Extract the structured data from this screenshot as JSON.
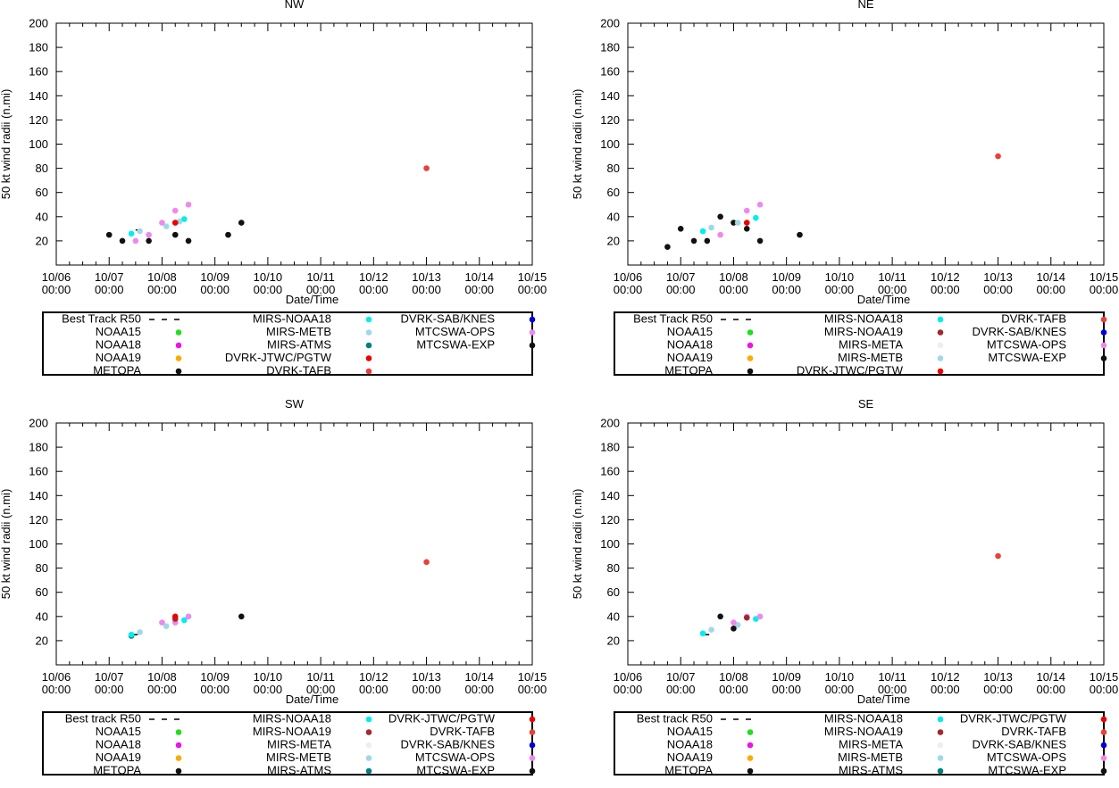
{
  "chart_data": [
    {
      "type": "scatter",
      "title": "NW",
      "xlabel": "Date/Time",
      "ylabel": "50 kt wind radii (n.mi)",
      "xlim": [
        0,
        9
      ],
      "ylim": [
        0,
        200
      ],
      "x_ticks": [
        "10/06 00:00",
        "10/07 00:00",
        "10/08 00:00",
        "10/09 00:00",
        "10/10 00:00",
        "10/11 00:00",
        "10/12 00:00",
        "10/13 00:00",
        "10/14 00:00",
        "10/15 00:00"
      ],
      "y_ticks": [
        20,
        40,
        60,
        80,
        100,
        120,
        140,
        160,
        180,
        200
      ],
      "legend": [
        {
          "name": "Best Track R50",
          "color": "#000000",
          "kind": "line"
        },
        {
          "name": "NOAA15",
          "color": "#22dd22",
          "kind": "point"
        },
        {
          "name": "NOAA18",
          "color": "#ee11ee",
          "kind": "point"
        },
        {
          "name": "NOAA19",
          "color": "#ffaa00",
          "kind": "point"
        },
        {
          "name": "METOPA",
          "color": "#111111",
          "kind": "point"
        },
        {
          "name": "MIRS-NOAA18",
          "color": "#00eeee",
          "kind": "point"
        },
        {
          "name": "MIRS-METB",
          "color": "#a0d8e8",
          "kind": "point"
        },
        {
          "name": "MIRS-ATMS",
          "color": "#008080",
          "kind": "point"
        },
        {
          "name": "DVRK-JTWC/PGTW",
          "color": "#ee0000",
          "kind": "point"
        },
        {
          "name": "DVRK-TAFB",
          "color": "#e8403a",
          "kind": "point"
        },
        {
          "name": "DVRK-SAB/KNES",
          "color": "#0000dd",
          "kind": "point"
        },
        {
          "name": "MTCSWA-OPS",
          "color": "#ee88ee",
          "kind": "point"
        },
        {
          "name": "MTCSWA-EXP",
          "color": "#111111",
          "kind": "point"
        }
      ],
      "best_track": [
        {
          "x": 1.5,
          "y": 29
        },
        {
          "x": 1.58,
          "y": 29
        }
      ],
      "series": [
        {
          "name": "MTCSWA-EXP",
          "color": "#111111",
          "points": [
            {
              "x": 1.0,
              "y": 25
            },
            {
              "x": 1.25,
              "y": 20
            },
            {
              "x": 1.75,
              "y": 20
            },
            {
              "x": 2.25,
              "y": 25
            },
            {
              "x": 2.5,
              "y": 20
            },
            {
              "x": 3.25,
              "y": 25
            },
            {
              "x": 3.5,
              "y": 35
            }
          ]
        },
        {
          "name": "MTCSWA-OPS",
          "color": "#ee88ee",
          "points": [
            {
              "x": 1.5,
              "y": 20
            },
            {
              "x": 1.75,
              "y": 25
            },
            {
              "x": 2.0,
              "y": 35
            },
            {
              "x": 2.25,
              "y": 45
            },
            {
              "x": 2.5,
              "y": 50
            }
          ]
        },
        {
          "name": "MIRS-METB",
          "color": "#a0d8e8",
          "points": [
            {
              "x": 1.58,
              "y": 28
            },
            {
              "x": 2.08,
              "y": 32
            },
            {
              "x": 2.33,
              "y": 36
            }
          ]
        },
        {
          "name": "MIRS-NOAA18",
          "color": "#00eeee",
          "points": [
            {
              "x": 1.42,
              "y": 26
            },
            {
              "x": 2.42,
              "y": 38
            }
          ]
        },
        {
          "name": "DVRK-JTWC/PGTW",
          "color": "#ee0000",
          "points": [
            {
              "x": 2.25,
              "y": 35
            }
          ]
        },
        {
          "name": "DVRK-TAFB",
          "color": "#e8403a",
          "points": [
            {
              "x": 7.0,
              "y": 80
            }
          ]
        }
      ]
    },
    {
      "type": "scatter",
      "title": "NE",
      "xlabel": "Date/Time",
      "ylabel": "50 kt wind radii (n.mi)",
      "xlim": [
        0,
        9
      ],
      "ylim": [
        0,
        200
      ],
      "x_ticks": [
        "10/06 00:00",
        "10/07 00:00",
        "10/08 00:00",
        "10/09 00:00",
        "10/10 00:00",
        "10/11 00:00",
        "10/12 00:00",
        "10/13 00:00",
        "10/14 00:00",
        "10/15 00:00"
      ],
      "y_ticks": [
        20,
        40,
        60,
        80,
        100,
        120,
        140,
        160,
        180,
        200
      ],
      "legend": [
        {
          "name": "Best Track R50",
          "color": "#000000",
          "kind": "line"
        },
        {
          "name": "NOAA15",
          "color": "#22dd22",
          "kind": "point"
        },
        {
          "name": "NOAA18",
          "color": "#ee11ee",
          "kind": "point"
        },
        {
          "name": "NOAA19",
          "color": "#ffaa00",
          "kind": "point"
        },
        {
          "name": "METOPA",
          "color": "#111111",
          "kind": "point"
        },
        {
          "name": "MIRS-NOAA18",
          "color": "#00eeee",
          "kind": "point"
        },
        {
          "name": "MIRS-NOAA19",
          "color": "#a02a2a",
          "kind": "point"
        },
        {
          "name": "MIRS-META",
          "color": "#eeeeee",
          "kind": "point"
        },
        {
          "name": "MIRS-METB",
          "color": "#a0d8e8",
          "kind": "point"
        },
        {
          "name": "DVRK-JTWC/PGTW",
          "color": "#ee0000",
          "kind": "point"
        },
        {
          "name": "DVRK-TAFB",
          "color": "#e8403a",
          "kind": "point"
        },
        {
          "name": "DVRK-SAB/KNES",
          "color": "#0000dd",
          "kind": "point"
        },
        {
          "name": "MTCSWA-OPS",
          "color": "#ee88ee",
          "kind": "point"
        },
        {
          "name": "MTCSWA-EXP",
          "color": "#111111",
          "kind": "point"
        }
      ],
      "best_track": [],
      "series": [
        {
          "name": "MTCSWA-EXP",
          "color": "#111111",
          "points": [
            {
              "x": 0.75,
              "y": 15
            },
            {
              "x": 1.0,
              "y": 30
            },
            {
              "x": 1.25,
              "y": 20
            },
            {
              "x": 1.5,
              "y": 20
            },
            {
              "x": 1.75,
              "y": 40
            },
            {
              "x": 2.0,
              "y": 35
            },
            {
              "x": 2.25,
              "y": 30
            },
            {
              "x": 2.5,
              "y": 20
            },
            {
              "x": 3.25,
              "y": 25
            }
          ]
        },
        {
          "name": "MTCSWA-OPS",
          "color": "#ee88ee",
          "points": [
            {
              "x": 1.75,
              "y": 25
            },
            {
              "x": 2.25,
              "y": 45
            },
            {
              "x": 2.5,
              "y": 50
            }
          ]
        },
        {
          "name": "MIRS-METB",
          "color": "#a0d8e8",
          "points": [
            {
              "x": 1.58,
              "y": 31
            },
            {
              "x": 2.08,
              "y": 35
            }
          ]
        },
        {
          "name": "MIRS-NOAA18",
          "color": "#00eeee",
          "points": [
            {
              "x": 1.42,
              "y": 28
            },
            {
              "x": 2.42,
              "y": 39
            }
          ]
        },
        {
          "name": "DVRK-JTWC/PGTW",
          "color": "#ee0000",
          "points": [
            {
              "x": 2.25,
              "y": 35
            }
          ]
        },
        {
          "name": "DVRK-TAFB",
          "color": "#e8403a",
          "points": [
            {
              "x": 7.0,
              "y": 90
            }
          ]
        }
      ]
    },
    {
      "type": "scatter",
      "title": "SW",
      "xlabel": "Date/Time",
      "ylabel": "50 kt wind radii (n.mi)",
      "xlim": [
        0,
        9
      ],
      "ylim": [
        0,
        200
      ],
      "x_ticks": [
        "10/06 00:00",
        "10/07 00:00",
        "10/08 00:00",
        "10/09 00:00",
        "10/10 00:00",
        "10/11 00:00",
        "10/12 00:00",
        "10/13 00:00",
        "10/14 00:00",
        "10/15 00:00"
      ],
      "y_ticks": [
        20,
        40,
        60,
        80,
        100,
        120,
        140,
        160,
        180,
        200
      ],
      "legend": [
        {
          "name": "Best track R50",
          "color": "#000000",
          "kind": "line"
        },
        {
          "name": "NOAA15",
          "color": "#22dd22",
          "kind": "point"
        },
        {
          "name": "NOAA18",
          "color": "#ee11ee",
          "kind": "point"
        },
        {
          "name": "NOAA19",
          "color": "#ffaa00",
          "kind": "point"
        },
        {
          "name": "METOPA",
          "color": "#111111",
          "kind": "point"
        },
        {
          "name": "MIRS-NOAA18",
          "color": "#00eeee",
          "kind": "point"
        },
        {
          "name": "MIRS-NOAA19",
          "color": "#a02a2a",
          "kind": "point"
        },
        {
          "name": "MIRS-META",
          "color": "#eeeeee",
          "kind": "point"
        },
        {
          "name": "MIRS-METB",
          "color": "#a0d8e8",
          "kind": "point"
        },
        {
          "name": "MIRS-ATMS",
          "color": "#008080",
          "kind": "point"
        },
        {
          "name": "DVRK-JTWC/PGTW",
          "color": "#ee0000",
          "kind": "point"
        },
        {
          "name": "DVRK-TAFB",
          "color": "#e8403a",
          "kind": "point"
        },
        {
          "name": "DVRK-SAB/KNES",
          "color": "#0000dd",
          "kind": "point"
        },
        {
          "name": "MTCSWA-OPS",
          "color": "#ee88ee",
          "kind": "point"
        },
        {
          "name": "MTCSWA-EXP",
          "color": "#111111",
          "kind": "point"
        }
      ],
      "best_track": [
        {
          "x": 1.46,
          "y": 25
        },
        {
          "x": 1.54,
          "y": 25
        }
      ],
      "series": [
        {
          "name": "MIRS-ATMS",
          "color": "#008080",
          "points": [
            {
              "x": 1.42,
              "y": 24
            }
          ]
        },
        {
          "name": "MIRS-NOAA18",
          "color": "#00eeee",
          "points": [
            {
              "x": 1.42,
              "y": 25
            },
            {
              "x": 2.42,
              "y": 37
            }
          ]
        },
        {
          "name": "MIRS-METB",
          "color": "#a0d8e8",
          "points": [
            {
              "x": 1.58,
              "y": 27
            },
            {
              "x": 2.08,
              "y": 32
            }
          ]
        },
        {
          "name": "MTCSWA-OPS",
          "color": "#ee88ee",
          "points": [
            {
              "x": 2.0,
              "y": 35
            },
            {
              "x": 2.25,
              "y": 35
            },
            {
              "x": 2.5,
              "y": 40
            }
          ]
        },
        {
          "name": "MIRS-NOAA19",
          "color": "#a02a2a",
          "points": [
            {
              "x": 2.25,
              "y": 38
            }
          ]
        },
        {
          "name": "DVRK-JTWC/PGTW",
          "color": "#ee0000",
          "points": [
            {
              "x": 2.25,
              "y": 40
            }
          ]
        },
        {
          "name": "MTCSWA-EXP",
          "color": "#111111",
          "points": [
            {
              "x": 3.5,
              "y": 40
            }
          ]
        },
        {
          "name": "DVRK-TAFB",
          "color": "#e8403a",
          "points": [
            {
              "x": 7.0,
              "y": 85
            }
          ]
        }
      ]
    },
    {
      "type": "scatter",
      "title": "SE",
      "xlabel": "Date/Time",
      "ylabel": "50 kt wind radii (n.mi)",
      "xlim": [
        0,
        9
      ],
      "ylim": [
        0,
        200
      ],
      "x_ticks": [
        "10/06 00:00",
        "10/07 00:00",
        "10/08 00:00",
        "10/09 00:00",
        "10/10 00:00",
        "10/11 00:00",
        "10/12 00:00",
        "10/13 00:00",
        "10/14 00:00",
        "10/15 00:00"
      ],
      "y_ticks": [
        20,
        40,
        60,
        80,
        100,
        120,
        140,
        160,
        180,
        200
      ],
      "legend": [
        {
          "name": "Best track R50",
          "color": "#000000",
          "kind": "line"
        },
        {
          "name": "NOAA15",
          "color": "#22dd22",
          "kind": "point"
        },
        {
          "name": "NOAA18",
          "color": "#ee11ee",
          "kind": "point"
        },
        {
          "name": "NOAA19",
          "color": "#ffaa00",
          "kind": "point"
        },
        {
          "name": "METOPA",
          "color": "#111111",
          "kind": "point"
        },
        {
          "name": "MIRS-NOAA18",
          "color": "#00eeee",
          "kind": "point"
        },
        {
          "name": "MIRS-NOAA19",
          "color": "#a02a2a",
          "kind": "point"
        },
        {
          "name": "MIRS-META",
          "color": "#eeeeee",
          "kind": "point"
        },
        {
          "name": "MIRS-METB",
          "color": "#a0d8e8",
          "kind": "point"
        },
        {
          "name": "MIRS-ATMS",
          "color": "#008080",
          "kind": "point"
        },
        {
          "name": "DVRK-JTWC/PGTW",
          "color": "#ee0000",
          "kind": "point"
        },
        {
          "name": "DVRK-TAFB",
          "color": "#e8403a",
          "kind": "point"
        },
        {
          "name": "DVRK-SAB/KNES",
          "color": "#0000dd",
          "kind": "point"
        },
        {
          "name": "MTCSWA-OPS",
          "color": "#ee88ee",
          "kind": "point"
        },
        {
          "name": "MTCSWA-EXP",
          "color": "#111111",
          "kind": "point"
        }
      ],
      "best_track": [
        {
          "x": 1.46,
          "y": 25
        },
        {
          "x": 1.54,
          "y": 25
        }
      ],
      "series": [
        {
          "name": "MIRS-NOAA18",
          "color": "#00eeee",
          "points": [
            {
              "x": 1.42,
              "y": 26
            },
            {
              "x": 2.42,
              "y": 38
            }
          ]
        },
        {
          "name": "MIRS-METB",
          "color": "#a0d8e8",
          "points": [
            {
              "x": 1.58,
              "y": 29
            },
            {
              "x": 2.08,
              "y": 33
            }
          ]
        },
        {
          "name": "MTCSWA-EXP",
          "color": "#111111",
          "points": [
            {
              "x": 1.75,
              "y": 40
            },
            {
              "x": 2.0,
              "y": 30
            }
          ]
        },
        {
          "name": "MTCSWA-OPS",
          "color": "#ee88ee",
          "points": [
            {
              "x": 2.0,
              "y": 35
            },
            {
              "x": 2.25,
              "y": 40
            },
            {
              "x": 2.5,
              "y": 40
            }
          ]
        },
        {
          "name": "MIRS-NOAA19",
          "color": "#a02a2a",
          "points": [
            {
              "x": 2.25,
              "y": 39
            }
          ]
        },
        {
          "name": "DVRK-TAFB",
          "color": "#e8403a",
          "points": [
            {
              "x": 7.0,
              "y": 90
            }
          ]
        }
      ]
    }
  ]
}
